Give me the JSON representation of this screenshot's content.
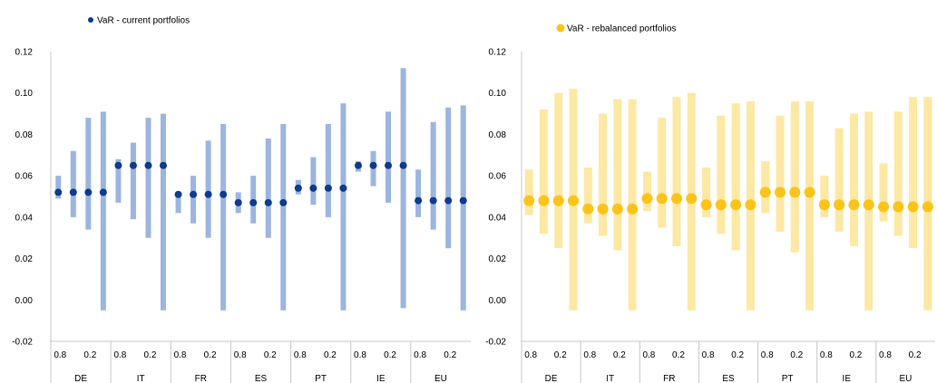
{
  "chart_data": [
    {
      "type": "range",
      "legend": "VaR - current portfolios",
      "legend_position": "top-center",
      "ylim": [
        -0.02,
        0.12
      ],
      "yticks": [
        "-0.02",
        "0.00",
        "0.02",
        "0.04",
        "0.06",
        "0.08",
        "0.10",
        "0.12"
      ],
      "subcategory_labels": [
        "0.8",
        "0.2"
      ],
      "groups": [
        {
          "name": "DE",
          "bars": [
            {
              "low": 0.049,
              "high": 0.06,
              "var": 0.052
            },
            {
              "low": 0.04,
              "high": 0.072,
              "var": 0.052
            },
            {
              "low": 0.034,
              "high": 0.088,
              "var": 0.052
            },
            {
              "low": -0.005,
              "high": 0.091,
              "var": 0.052
            }
          ]
        },
        {
          "name": "IT",
          "bars": [
            {
              "low": 0.047,
              "high": 0.068,
              "var": 0.065
            },
            {
              "low": 0.039,
              "high": 0.076,
              "var": 0.065
            },
            {
              "low": 0.03,
              "high": 0.088,
              "var": 0.065
            },
            {
              "low": -0.005,
              "high": 0.09,
              "var": 0.065
            }
          ]
        },
        {
          "name": "FR",
          "bars": [
            {
              "low": 0.042,
              "high": 0.051,
              "var": 0.051
            },
            {
              "low": 0.037,
              "high": 0.06,
              "var": 0.051
            },
            {
              "low": 0.03,
              "high": 0.077,
              "var": 0.051
            },
            {
              "low": -0.005,
              "high": 0.085,
              "var": 0.051
            }
          ]
        },
        {
          "name": "ES",
          "bars": [
            {
              "low": 0.042,
              "high": 0.052,
              "var": 0.047
            },
            {
              "low": 0.037,
              "high": 0.06,
              "var": 0.047
            },
            {
              "low": 0.03,
              "high": 0.078,
              "var": 0.047
            },
            {
              "low": -0.005,
              "high": 0.085,
              "var": 0.047
            }
          ]
        },
        {
          "name": "PT",
          "bars": [
            {
              "low": 0.051,
              "high": 0.058,
              "var": 0.054
            },
            {
              "low": 0.046,
              "high": 0.069,
              "var": 0.054
            },
            {
              "low": 0.04,
              "high": 0.085,
              "var": 0.054
            },
            {
              "low": -0.005,
              "high": 0.095,
              "var": 0.054
            }
          ]
        },
        {
          "name": "IE",
          "bars": [
            {
              "low": 0.062,
              "high": 0.067,
              "var": 0.065
            },
            {
              "low": 0.055,
              "high": 0.072,
              "var": 0.065
            },
            {
              "low": 0.047,
              "high": 0.091,
              "var": 0.065
            },
            {
              "low": -0.004,
              "high": 0.112,
              "var": 0.065
            }
          ]
        },
        {
          "name": "EU",
          "bars": [
            {
              "low": 0.04,
              "high": 0.063,
              "var": 0.048
            },
            {
              "low": 0.034,
              "high": 0.086,
              "var": 0.048
            },
            {
              "low": 0.025,
              "high": 0.093,
              "var": 0.048
            },
            {
              "low": -0.005,
              "high": 0.094,
              "var": 0.048
            }
          ]
        }
      ]
    },
    {
      "type": "range",
      "legend": "VaR - rebalanced portfolios",
      "legend_position": "top-center",
      "ylim": [
        -0.02,
        0.12
      ],
      "yticks": [
        "-0.02",
        "0.00",
        "0.02",
        "0.04",
        "0.06",
        "0.08",
        "0.10",
        "0.12"
      ],
      "subcategory_labels": [
        "0.8",
        "0.2"
      ],
      "groups": [
        {
          "name": "DE",
          "bars": [
            {
              "low": 0.041,
              "high": 0.063,
              "var": 0.048
            },
            {
              "low": 0.032,
              "high": 0.092,
              "var": 0.048
            },
            {
              "low": 0.025,
              "high": 0.1,
              "var": 0.048
            },
            {
              "low": -0.005,
              "high": 0.102,
              "var": 0.048
            }
          ]
        },
        {
          "name": "IT",
          "bars": [
            {
              "low": 0.037,
              "high": 0.064,
              "var": 0.044
            },
            {
              "low": 0.031,
              "high": 0.09,
              "var": 0.044
            },
            {
              "low": 0.024,
              "high": 0.097,
              "var": 0.044
            },
            {
              "low": -0.005,
              "high": 0.097,
              "var": 0.044
            }
          ]
        },
        {
          "name": "FR",
          "bars": [
            {
              "low": 0.043,
              "high": 0.062,
              "var": 0.049
            },
            {
              "low": 0.035,
              "high": 0.088,
              "var": 0.049
            },
            {
              "low": 0.026,
              "high": 0.098,
              "var": 0.049
            },
            {
              "low": -0.005,
              "high": 0.1,
              "var": 0.049
            }
          ]
        },
        {
          "name": "ES",
          "bars": [
            {
              "low": 0.04,
              "high": 0.064,
              "var": 0.046
            },
            {
              "low": 0.032,
              "high": 0.089,
              "var": 0.046
            },
            {
              "low": 0.024,
              "high": 0.095,
              "var": 0.046
            },
            {
              "low": -0.005,
              "high": 0.096,
              "var": 0.046
            }
          ]
        },
        {
          "name": "PT",
          "bars": [
            {
              "low": 0.042,
              "high": 0.067,
              "var": 0.052
            },
            {
              "low": 0.033,
              "high": 0.089,
              "var": 0.052
            },
            {
              "low": 0.023,
              "high": 0.096,
              "var": 0.052
            },
            {
              "low": -0.005,
              "high": 0.096,
              "var": 0.052
            }
          ]
        },
        {
          "name": "IE",
          "bars": [
            {
              "low": 0.04,
              "high": 0.06,
              "var": 0.046
            },
            {
              "low": 0.033,
              "high": 0.083,
              "var": 0.046
            },
            {
              "low": 0.026,
              "high": 0.09,
              "var": 0.046
            },
            {
              "low": -0.005,
              "high": 0.091,
              "var": 0.046
            }
          ]
        },
        {
          "name": "EU",
          "bars": [
            {
              "low": 0.038,
              "high": 0.066,
              "var": 0.045
            },
            {
              "low": 0.031,
              "high": 0.091,
              "var": 0.045
            },
            {
              "low": 0.025,
              "high": 0.098,
              "var": 0.045
            },
            {
              "low": -0.005,
              "high": 0.098,
              "var": 0.045
            }
          ]
        }
      ]
    }
  ],
  "colors": {
    "left_range": "#9cb5e0",
    "left_marker": "#0f3b8c",
    "right_range": "#fde8a4",
    "right_marker": "#fcc419",
    "axis": "#c8c8c8"
  }
}
